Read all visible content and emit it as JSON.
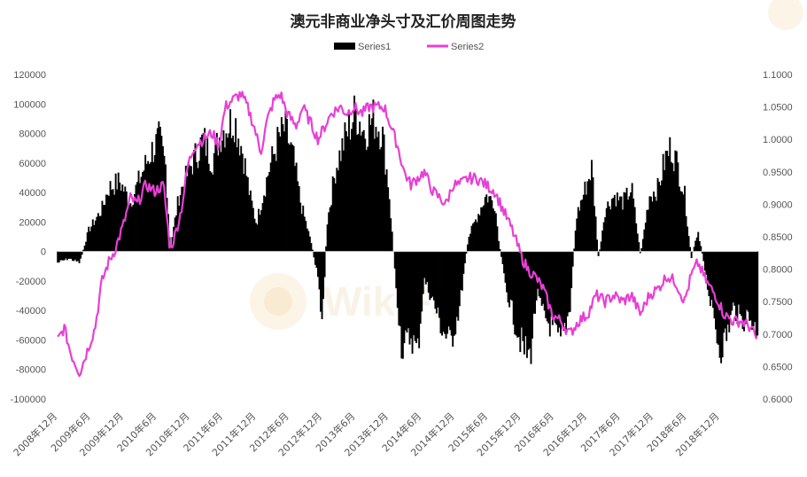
{
  "chart_data": {
    "type": "bar+line",
    "title": "澳元非商业净头寸及汇价周图走势",
    "legend": {
      "placement": "top-center",
      "entries": [
        "Series1",
        "Series2"
      ]
    },
    "left_axis": {
      "ylim": [
        -100000,
        120000
      ],
      "ticks": [
        120000,
        100000,
        80000,
        60000,
        40000,
        20000,
        0,
        -20000,
        -40000,
        -60000,
        -80000,
        -100000
      ]
    },
    "right_axis": {
      "ylim": [
        0.6,
        1.1
      ],
      "ticks": [
        "1.1000",
        "1.0500",
        "1.0000",
        "0.9500",
        "0.9000",
        "0.8500",
        "0.8000",
        "0.7500",
        "0.7000",
        "0.6500",
        "0.6000"
      ]
    },
    "x_labels": [
      "2008年12月",
      "2009年6月",
      "2009年12月",
      "2010年6月",
      "2010年12月",
      "2011年6月",
      "2011年12月",
      "2012年6月",
      "2012年12月",
      "2013年6月",
      "2013年12月",
      "2014年6月",
      "2014年12月",
      "2015年6月",
      "2015年12月",
      "2016年6月",
      "2016年12月",
      "2017年6月",
      "2017年12月",
      "2018年6月",
      "2018年12月"
    ],
    "series": [
      {
        "name": "Series1",
        "kind": "bar",
        "axis": "left",
        "color": "#000000",
        "anchors": [
          [
            0,
            -8000
          ],
          [
            0.5,
            -5000
          ],
          [
            1,
            -8000
          ],
          [
            1.4,
            15000
          ],
          [
            2,
            30000
          ],
          [
            2.3,
            45000
          ],
          [
            2.8,
            50000
          ],
          [
            3.3,
            35000
          ],
          [
            3.8,
            55000
          ],
          [
            4.2,
            70000
          ],
          [
            4.6,
            80000
          ],
          [
            4.9,
            60000
          ],
          [
            5.1,
            2000
          ],
          [
            5.5,
            40000
          ],
          [
            6,
            60000
          ],
          [
            6.3,
            70000
          ],
          [
            6.6,
            80000
          ],
          [
            7,
            65000
          ],
          [
            7.4,
            85000
          ],
          [
            8,
            95000
          ],
          [
            8.4,
            70000
          ],
          [
            8.7,
            40000
          ],
          [
            9,
            20000
          ],
          [
            9.6,
            60000
          ],
          [
            10,
            80000
          ],
          [
            10.3,
            88000
          ],
          [
            10.7,
            65000
          ],
          [
            11,
            35000
          ],
          [
            11.5,
            5000
          ],
          [
            11.8,
            -20000
          ],
          [
            12,
            -50000
          ],
          [
            12.2,
            20000
          ],
          [
            12.6,
            60000
          ],
          [
            13,
            80000
          ],
          [
            13.5,
            100000
          ],
          [
            13.9,
            85000
          ],
          [
            14.3,
            95000
          ],
          [
            14.7,
            85000
          ],
          [
            15,
            45000
          ],
          [
            15.3,
            -20000
          ],
          [
            15.6,
            -70000
          ],
          [
            16,
            -60000
          ],
          [
            16.3,
            -72000
          ],
          [
            16.6,
            -20000
          ],
          [
            17,
            -35000
          ],
          [
            17.4,
            -55000
          ],
          [
            17.8,
            -65000
          ],
          [
            18.2,
            -40000
          ],
          [
            18.6,
            10000
          ],
          [
            19,
            25000
          ],
          [
            19.4,
            40000
          ],
          [
            19.8,
            35000
          ],
          [
            20,
            5000
          ],
          [
            20.3,
            -25000
          ],
          [
            20.7,
            -50000
          ],
          [
            21.1,
            -70000
          ],
          [
            21.4,
            -75000
          ],
          [
            21.7,
            -30000
          ],
          [
            22,
            -45000
          ],
          [
            22.4,
            -55000
          ],
          [
            22.8,
            -65000
          ],
          [
            23.2,
            -40000
          ],
          [
            23.5,
            25000
          ],
          [
            23.8,
            40000
          ],
          [
            24.2,
            60000
          ],
          [
            24.5,
            -5000
          ],
          [
            24.8,
            30000
          ],
          [
            25.2,
            40000
          ],
          [
            25.6,
            35000
          ],
          [
            26,
            45000
          ],
          [
            26.4,
            -3000
          ],
          [
            26.8,
            40000
          ],
          [
            27.2,
            45000
          ],
          [
            27.5,
            65000
          ],
          [
            27.8,
            75000
          ],
          [
            28.1,
            60000
          ],
          [
            28.4,
            40000
          ],
          [
            28.7,
            -5000
          ],
          [
            29,
            15000
          ],
          [
            29.3,
            -10000
          ],
          [
            29.6,
            -40000
          ],
          [
            30,
            -70000
          ],
          [
            30.3,
            -60000
          ],
          [
            30.6,
            -40000
          ],
          [
            31,
            -50000
          ],
          [
            31.3,
            -45000
          ],
          [
            31.6,
            -55000
          ]
        ]
      },
      {
        "name": "Series2",
        "kind": "line",
        "axis": "right",
        "color": "#e83fd6",
        "anchors": [
          [
            0,
            0.69
          ],
          [
            0.3,
            0.71
          ],
          [
            0.6,
            0.67
          ],
          [
            1,
            0.64
          ],
          [
            1.3,
            0.67
          ],
          [
            1.7,
            0.71
          ],
          [
            2,
            0.78
          ],
          [
            2.3,
            0.81
          ],
          [
            2.6,
            0.83
          ],
          [
            3,
            0.87
          ],
          [
            3.3,
            0.91
          ],
          [
            3.6,
            0.9
          ],
          [
            4,
            0.93
          ],
          [
            4.4,
            0.92
          ],
          [
            4.8,
            0.93
          ],
          [
            5.1,
            0.83
          ],
          [
            5.3,
            0.85
          ],
          [
            5.6,
            0.89
          ],
          [
            5.9,
            0.96
          ],
          [
            6.2,
            0.99
          ],
          [
            6.6,
            1.0
          ],
          [
            7,
            1.01
          ],
          [
            7.3,
            0.99
          ],
          [
            7.6,
            1.05
          ],
          [
            7.9,
            1.06
          ],
          [
            8.3,
            1.07
          ],
          [
            8.6,
            1.05
          ],
          [
            8.9,
            1.02
          ],
          [
            9.2,
            0.98
          ],
          [
            9.5,
            1.03
          ],
          [
            9.8,
            1.06
          ],
          [
            10.1,
            1.07
          ],
          [
            10.4,
            1.04
          ],
          [
            10.8,
            1.02
          ],
          [
            11.1,
            1.05
          ],
          [
            11.4,
            1.03
          ],
          [
            11.8,
            1.0
          ],
          [
            12.1,
            1.02
          ],
          [
            12.4,
            1.04
          ],
          [
            12.8,
            1.05
          ],
          [
            13.1,
            1.04
          ],
          [
            13.4,
            1.05
          ],
          [
            13.8,
            1.04
          ],
          [
            14.1,
            1.05
          ],
          [
            14.4,
            1.05
          ],
          [
            14.8,
            1.05
          ],
          [
            15.1,
            1.02
          ],
          [
            15.4,
            0.99
          ],
          [
            15.7,
            0.95
          ],
          [
            16,
            0.93
          ],
          [
            16.3,
            0.94
          ],
          [
            16.6,
            0.95
          ],
          [
            17,
            0.92
          ],
          [
            17.3,
            0.91
          ],
          [
            17.6,
            0.9
          ],
          [
            17.9,
            0.93
          ],
          [
            18.2,
            0.93
          ],
          [
            18.6,
            0.94
          ],
          [
            19,
            0.94
          ],
          [
            19.4,
            0.93
          ],
          [
            19.8,
            0.92
          ],
          [
            20.2,
            0.89
          ],
          [
            20.6,
            0.86
          ],
          [
            21,
            0.82
          ],
          [
            21.3,
            0.8
          ],
          [
            21.6,
            0.79
          ],
          [
            22,
            0.77
          ],
          [
            22.4,
            0.73
          ],
          [
            22.8,
            0.72
          ],
          [
            23.2,
            0.7
          ],
          [
            23.6,
            0.72
          ],
          [
            24,
            0.73
          ],
          [
            24.4,
            0.76
          ],
          [
            24.8,
            0.75
          ],
          [
            25.2,
            0.76
          ],
          [
            25.6,
            0.75
          ],
          [
            26,
            0.76
          ],
          [
            26.4,
            0.73
          ],
          [
            26.8,
            0.76
          ],
          [
            27.2,
            0.77
          ],
          [
            27.6,
            0.79
          ],
          [
            28,
            0.78
          ],
          [
            28.4,
            0.75
          ],
          [
            28.7,
            0.79
          ],
          [
            29,
            0.81
          ],
          [
            29.4,
            0.78
          ],
          [
            29.8,
            0.76
          ],
          [
            30.2,
            0.73
          ],
          [
            30.6,
            0.72
          ],
          [
            31,
            0.72
          ],
          [
            31.4,
            0.71
          ],
          [
            31.7,
            0.69
          ]
        ]
      }
    ]
  },
  "watermark": {
    "text": "WikiFX",
    "icon": "wikifx-logo-icon"
  }
}
